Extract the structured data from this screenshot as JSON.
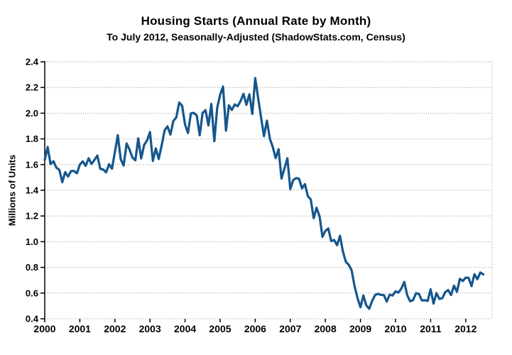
{
  "chart_data": {
    "type": "line",
    "title": "Housing Starts (Annual Rate by Month)",
    "subtitle": "To July 2012, Seasonally-Adjusted (ShadowStats.com, Census)",
    "xlabel": "",
    "ylabel": "Millions of Units",
    "ylim": [
      0.4,
      2.4
    ],
    "y_ticks": [
      0.4,
      0.6,
      0.8,
      1.0,
      1.2,
      1.4,
      1.6,
      1.8,
      2.0,
      2.2,
      2.4
    ],
    "x_tick_labels": [
      "2000",
      "2001",
      "2002",
      "2003",
      "2004",
      "2005",
      "2006",
      "2007",
      "2008",
      "2009",
      "2010",
      "2011",
      "2012"
    ],
    "x_start": "2000-01",
    "x_end": "2012-07",
    "frequency": "monthly",
    "grid": "horizontal dotted gray, plot box top/right dotted",
    "legend": "none",
    "colors": {
      "line": "#15568d",
      "grid": "#999999",
      "axis": "#000000",
      "background": "#ffffff"
    },
    "series": [
      {
        "name": "Housing Starts (seasonally-adjusted annual rate, millions of units)",
        "values": [
          1.636,
          1.737,
          1.604,
          1.626,
          1.575,
          1.559,
          1.463,
          1.541,
          1.507,
          1.549,
          1.551,
          1.532,
          1.6,
          1.625,
          1.59,
          1.649,
          1.605,
          1.636,
          1.67,
          1.567,
          1.562,
          1.54,
          1.602,
          1.568,
          1.698,
          1.829,
          1.642,
          1.592,
          1.764,
          1.717,
          1.655,
          1.633,
          1.804,
          1.648,
          1.753,
          1.788,
          1.853,
          1.629,
          1.726,
          1.643,
          1.751,
          1.867,
          1.897,
          1.833,
          1.939,
          1.967,
          2.083,
          2.057,
          1.911,
          1.846,
          1.998,
          2.003,
          1.981,
          1.828,
          2.002,
          2.024,
          1.905,
          2.072,
          1.782,
          2.042,
          2.144,
          2.207,
          1.864,
          2.061,
          2.025,
          2.068,
          2.054,
          2.095,
          2.151,
          2.065,
          2.147,
          1.994,
          2.273,
          2.119,
          1.969,
          1.821,
          1.942,
          1.802,
          1.737,
          1.65,
          1.72,
          1.491,
          1.57,
          1.649,
          1.409,
          1.48,
          1.495,
          1.49,
          1.415,
          1.448,
          1.354,
          1.33,
          1.183,
          1.264,
          1.197,
          1.037,
          1.084,
          1.103,
          1.005,
          1.013,
          0.973,
          1.046,
          0.923,
          0.844,
          0.82,
          0.777,
          0.652,
          0.56,
          0.49,
          0.582,
          0.505,
          0.478,
          0.54,
          0.585,
          0.594,
          0.586,
          0.585,
          0.534,
          0.588,
          0.581,
          0.614,
          0.604,
          0.636,
          0.687,
          0.583,
          0.536,
          0.546,
          0.599,
          0.594,
          0.543,
          0.545,
          0.539,
          0.63,
          0.518,
          0.6,
          0.554,
          0.561,
          0.608,
          0.623,
          0.585,
          0.658,
          0.61,
          0.711,
          0.694,
          0.72,
          0.718,
          0.654,
          0.747,
          0.708,
          0.76,
          0.746
        ]
      }
    ]
  }
}
